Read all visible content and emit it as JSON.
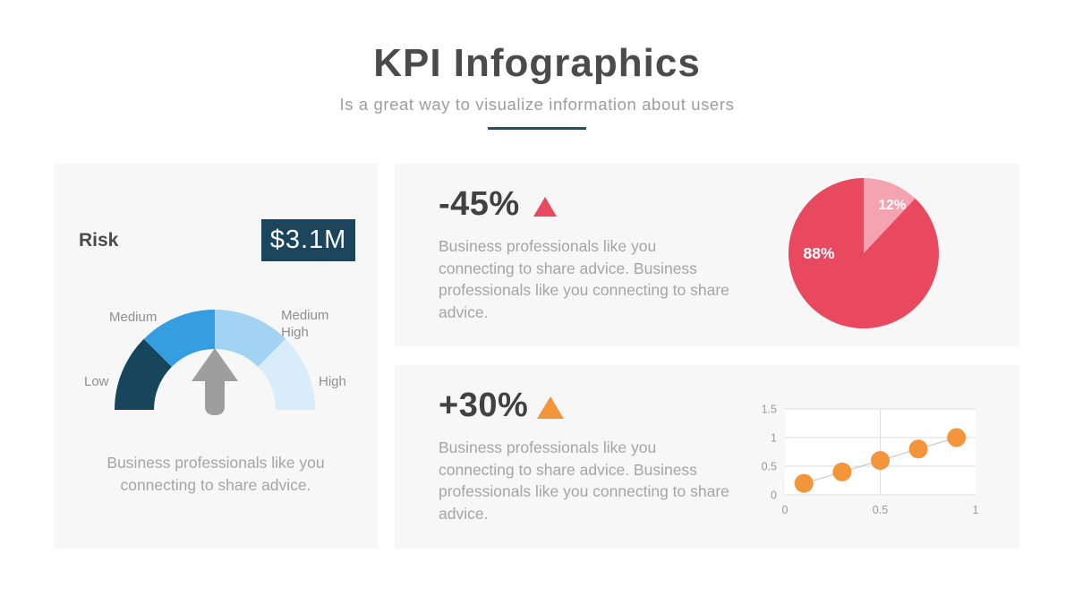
{
  "header": {
    "title": "KPI Infographics",
    "subtitle": "Is a great way to visualize information about users"
  },
  "risk_panel": {
    "label": "Risk",
    "value": "$3.1M",
    "gauge_labels": {
      "low": "Low",
      "medium": "Medium",
      "medium_high": "Medium High",
      "high": "High"
    },
    "description": "Business professionals like you connecting to share advice."
  },
  "kpi_top": {
    "delta": "-45%",
    "trend_icon": "triangle-up",
    "trend_color": "#e8495f",
    "description": "Business professionals like you connecting to share advice. Business professionals like you connecting to share advice."
  },
  "kpi_bottom": {
    "delta": "+30%",
    "trend_icon": "triangle-up",
    "trend_color": "#f2953b",
    "description": "Business professionals like you connecting to share advice. Business professionals like you connecting to share advice."
  },
  "colors": {
    "panel_bg": "#f7f7f7",
    "title": "#4b4b4b",
    "subtitle": "#9d9d9d",
    "body_text": "#a5a5a5",
    "accent_navy": "#1a455c",
    "divider_teal": "#2c4d5c",
    "red": "#e8495f",
    "pink": "#f4a3b0",
    "orange": "#f2953b",
    "arrow_gray": "#9e9e9e"
  },
  "chart_data": [
    {
      "id": "risk-gauge",
      "type": "gauge",
      "title": "Risk",
      "value": "$3.1M",
      "segments": [
        {
          "label": "Low",
          "color": "#17455c"
        },
        {
          "label": "Medium",
          "color": "#359ee0"
        },
        {
          "label": "Medium High",
          "color": "#a3d3f2"
        },
        {
          "label": "High",
          "color": "#d9ecfa"
        }
      ],
      "needle": "up",
      "needle_color": "#9e9e9e"
    },
    {
      "id": "share-pie",
      "type": "pie",
      "slices": [
        {
          "label": "12%",
          "value": 12,
          "color": "#f4a3b0"
        },
        {
          "label": "88%",
          "value": 88,
          "color": "#e8495f"
        }
      ],
      "label_color": "#ffffff",
      "start_angle_deg": 0,
      "direction": "clockwise"
    },
    {
      "id": "growth-scatter",
      "type": "scatter",
      "x": [
        0.1,
        0.3,
        0.5,
        0.7,
        0.9
      ],
      "y": [
        0.2,
        0.4,
        0.6,
        0.8,
        1.0
      ],
      "xlim": [
        0,
        1
      ],
      "ylim": [
        0,
        1.5
      ],
      "xticks": [
        0,
        0.5,
        1
      ],
      "yticks": [
        0,
        0.5,
        1,
        1.5
      ],
      "grid": true,
      "point_color": "#f2953b",
      "line_color": "#c9c9c9",
      "plot_bg": "#ffffff",
      "tick_color": "#9a9a9a"
    }
  ]
}
